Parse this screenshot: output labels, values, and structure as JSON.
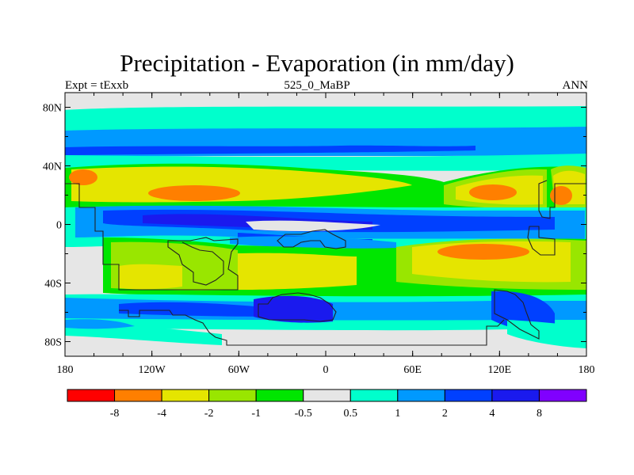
{
  "title": "Precipitation - Evaporation (in mm/day)",
  "left_subtitle": "Expt = tExxb",
  "center_subtitle": "525_0_MaBP",
  "right_subtitle": "ANN",
  "map": {
    "projection": "cylindrical equidistant",
    "lon_range": [
      -180,
      180
    ],
    "lat_range": [
      -90,
      90
    ],
    "y_ticks": [
      {
        "value": 80,
        "label": "80N"
      },
      {
        "value": 40,
        "label": "40N"
      },
      {
        "value": 0,
        "label": "0"
      },
      {
        "value": -40,
        "label": "40S"
      },
      {
        "value": -80,
        "label": "80S"
      }
    ],
    "x_ticks": [
      {
        "value": -180,
        "label": "180"
      },
      {
        "value": -120,
        "label": "120W"
      },
      {
        "value": -60,
        "label": "60W"
      },
      {
        "value": 0,
        "label": "0"
      },
      {
        "value": 60,
        "label": "60E"
      },
      {
        "value": 120,
        "label": "120E"
      },
      {
        "value": 180,
        "label": "180"
      }
    ]
  },
  "colorbar": {
    "colors": [
      "#ff0000",
      "#ff7f00",
      "#e5e500",
      "#99e600",
      "#00e600",
      "#e6e6e6",
      "#00ffcc",
      "#0099ff",
      "#0040ff",
      "#1a1aee",
      "#8000ff"
    ],
    "labels": [
      "-8",
      "-4",
      "-2",
      "-1",
      "-0.5",
      "0.5",
      "1",
      "2",
      "4",
      "8"
    ]
  },
  "palette": {
    "dry_strong": "#ff7f00",
    "dry": "#e5e500",
    "dry_mild": "#99e600",
    "dry_weak": "#00e600",
    "neutral": "#e6e6e6",
    "wet_weak": "#00ffcc",
    "wet": "#0099ff",
    "wet_strong": "#0040ff",
    "wet_very": "#1a1aee"
  }
}
